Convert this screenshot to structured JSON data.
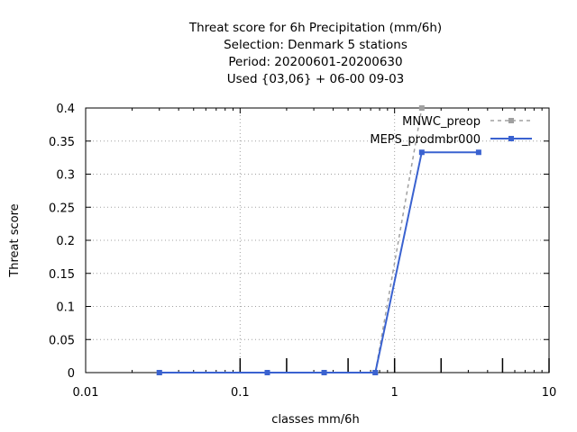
{
  "chart_data": {
    "type": "line",
    "title_lines": [
      "Threat score  for 6h Precipitation (mm/6h)",
      "Selection: Denmark      5 stations",
      "Period: 20200601-20200630",
      "Used {03,06} + 06-00 09-03"
    ],
    "xlabel": "classes mm/6h",
    "ylabel": "Threat score",
    "x_scale": "log",
    "xlim": [
      0.01,
      10
    ],
    "ylim": [
      0,
      0.4
    ],
    "x_ticks": [
      0.01,
      0.1,
      1,
      10
    ],
    "x_tick_labels": [
      "0.01",
      "0.1",
      "1",
      "10"
    ],
    "y_ticks": [
      0,
      0.05,
      0.1,
      0.15,
      0.2,
      0.25,
      0.3,
      0.35,
      0.4
    ],
    "y_tick_labels": [
      "0",
      "0.05",
      "0.1",
      "0.15",
      "0.2",
      "0.25",
      "0.3",
      "0.35",
      "0.4"
    ],
    "class_markers": [
      0.1,
      0.2,
      0.5,
      1,
      2,
      5,
      10
    ],
    "grid": true,
    "legend_position": "top-right",
    "series": [
      {
        "name": "MNWC_preop",
        "color": "#a0a0a0",
        "dash": true,
        "x": [
          0.03,
          0.15,
          0.35,
          0.75,
          1.5
        ],
        "y": [
          0,
          0,
          0,
          0,
          0.4
        ]
      },
      {
        "name": "MEPS_prodmbr000",
        "color": "#3a62d0",
        "dash": false,
        "x": [
          0.03,
          0.15,
          0.35,
          0.75,
          1.5,
          3.5
        ],
        "y": [
          0,
          0,
          0,
          0,
          0.333,
          0.333
        ]
      }
    ]
  }
}
